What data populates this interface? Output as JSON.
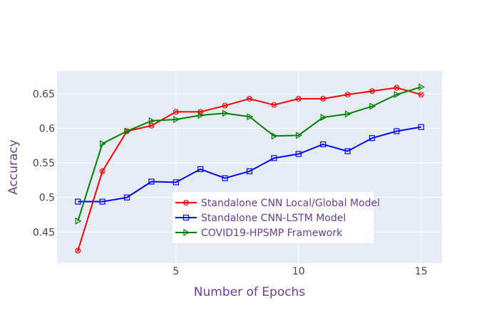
{
  "chart_data": {
    "type": "line",
    "xlabel": "Number of Epochs",
    "ylabel": "Accuracy",
    "xlim": [
      0.15,
      15.85
    ],
    "ylim": [
      0.405,
      0.683
    ],
    "x_ticks": [
      5,
      10,
      15
    ],
    "y_ticks": [
      0.45,
      0.5,
      0.55,
      0.6,
      0.65
    ],
    "y_tick_labels": [
      "0.45",
      "0.5",
      "0.55",
      "0.6",
      "0.65"
    ],
    "grid": true,
    "legend_position": "bottom-center inside plot",
    "series": [
      {
        "name": "Standalone CNN Local/Global Model",
        "color": "#ff0000",
        "marker": "circle-x",
        "x": [
          1,
          2,
          3,
          4,
          5,
          6,
          7,
          8,
          9,
          10,
          11,
          12,
          13,
          14,
          15
        ],
        "values": [
          0.423,
          0.538,
          0.596,
          0.604,
          0.624,
          0.624,
          0.633,
          0.643,
          0.634,
          0.643,
          0.643,
          0.649,
          0.654,
          0.659,
          0.649
        ]
      },
      {
        "name": "Standalone CNN-LSTM Model",
        "color": "#0000ff",
        "marker": "square-open",
        "x": [
          1,
          2,
          3,
          4,
          5,
          6,
          7,
          8,
          9,
          10,
          11,
          12,
          13,
          14,
          15
        ],
        "values": [
          0.494,
          0.494,
          0.5,
          0.523,
          0.522,
          0.541,
          0.528,
          0.538,
          0.557,
          0.563,
          0.577,
          0.567,
          0.586,
          0.596,
          0.602
        ]
      },
      {
        "name": "COVID19-HPSMP Framework",
        "color": "#008000",
        "marker": "triangle-right-open",
        "x": [
          1,
          2,
          3,
          4,
          5,
          6,
          7,
          8,
          9,
          10,
          11,
          12,
          13,
          14,
          15
        ],
        "values": [
          0.466,
          0.578,
          0.596,
          0.611,
          0.613,
          0.619,
          0.622,
          0.617,
          0.589,
          0.59,
          0.616,
          0.621,
          0.632,
          0.649,
          0.66
        ]
      }
    ]
  }
}
